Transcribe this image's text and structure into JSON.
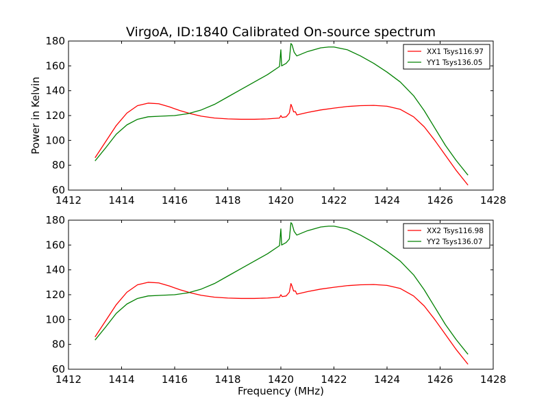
{
  "figure": {
    "title": "VirgoA, ID:1840 Calibrated On-source spectrum",
    "xlabel": "Frequency (MHz)",
    "ylabel": "Power in Kelvin"
  },
  "chart_data": [
    {
      "type": "line",
      "title": "VirgoA, ID:1840 Calibrated On-source spectrum",
      "xlabel": "",
      "ylabel": "Power in Kelvin",
      "xlim": [
        1412,
        1428
      ],
      "ylim": [
        60,
        180
      ],
      "x_ticks": [
        1412,
        1414,
        1416,
        1418,
        1420,
        1422,
        1424,
        1426,
        1428
      ],
      "y_ticks": [
        60,
        80,
        100,
        120,
        140,
        160,
        180
      ],
      "legend_position": "top-right",
      "series": [
        {
          "name": "XX1 Tsys116.97",
          "color": "#ff0000",
          "points": [
            [
              1413.0,
              86
            ],
            [
              1413.4,
              99
            ],
            [
              1413.8,
              112
            ],
            [
              1414.2,
              122
            ],
            [
              1414.6,
              128
            ],
            [
              1415.0,
              130
            ],
            [
              1415.4,
              129.5
            ],
            [
              1415.8,
              127
            ],
            [
              1416.2,
              124
            ],
            [
              1416.6,
              121.5
            ],
            [
              1417.0,
              119.5
            ],
            [
              1417.5,
              118
            ],
            [
              1418.0,
              117.3
            ],
            [
              1418.5,
              117
            ],
            [
              1419.0,
              117
            ],
            [
              1419.5,
              117.3
            ],
            [
              1419.95,
              118
            ],
            [
              1420.0,
              120
            ],
            [
              1420.05,
              118.5
            ],
            [
              1420.2,
              119
            ],
            [
              1420.32,
              122
            ],
            [
              1420.38,
              129
            ],
            [
              1420.42,
              127
            ],
            [
              1420.48,
              123
            ],
            [
              1420.55,
              123
            ],
            [
              1420.6,
              120.5
            ],
            [
              1421.0,
              122.5
            ],
            [
              1421.5,
              124.5
            ],
            [
              1422.0,
              126
            ],
            [
              1422.5,
              127.3
            ],
            [
              1423.0,
              128
            ],
            [
              1423.5,
              128.2
            ],
            [
              1424.0,
              127.5
            ],
            [
              1424.5,
              125
            ],
            [
              1425.0,
              119
            ],
            [
              1425.4,
              111
            ],
            [
              1425.8,
              100
            ],
            [
              1426.2,
              88
            ],
            [
              1426.6,
              76
            ],
            [
              1427.05,
              64
            ]
          ]
        },
        {
          "name": "YY1 Tsys136.05",
          "color": "#008000",
          "points": [
            [
              1413.0,
              83.5
            ],
            [
              1413.4,
              94
            ],
            [
              1413.8,
              105
            ],
            [
              1414.2,
              112.5
            ],
            [
              1414.6,
              117
            ],
            [
              1415.0,
              119
            ],
            [
              1415.5,
              119.5
            ],
            [
              1416.0,
              120
            ],
            [
              1416.5,
              121.5
            ],
            [
              1417.0,
              124.5
            ],
            [
              1417.5,
              129
            ],
            [
              1418.0,
              135
            ],
            [
              1418.5,
              141
            ],
            [
              1419.0,
              147
            ],
            [
              1419.5,
              153
            ],
            [
              1419.95,
              159.5
            ],
            [
              1420.0,
              173
            ],
            [
              1420.03,
              160
            ],
            [
              1420.2,
              162
            ],
            [
              1420.32,
              165
            ],
            [
              1420.38,
              178
            ],
            [
              1420.42,
              177
            ],
            [
              1420.5,
              171
            ],
            [
              1420.6,
              168
            ],
            [
              1421.0,
              171.5
            ],
            [
              1421.5,
              174.5
            ],
            [
              1421.8,
              175.2
            ],
            [
              1422.0,
              175.2
            ],
            [
              1422.5,
              173
            ],
            [
              1423.0,
              168
            ],
            [
              1423.5,
              162
            ],
            [
              1424.0,
              155
            ],
            [
              1424.5,
              147
            ],
            [
              1425.0,
              136
            ],
            [
              1425.4,
              124
            ],
            [
              1425.8,
              110
            ],
            [
              1426.2,
              96
            ],
            [
              1426.6,
              84
            ],
            [
              1427.05,
              72
            ]
          ]
        }
      ]
    },
    {
      "type": "line",
      "title": "",
      "xlabel": "Frequency (MHz)",
      "ylabel": "",
      "xlim": [
        1412,
        1428
      ],
      "ylim": [
        60,
        180
      ],
      "x_ticks": [
        1412,
        1414,
        1416,
        1418,
        1420,
        1422,
        1424,
        1426,
        1428
      ],
      "y_ticks": [
        60,
        80,
        100,
        120,
        140,
        160,
        180
      ],
      "legend_position": "top-right",
      "series": [
        {
          "name": "XX2 Tsys116.98",
          "color": "#ff0000",
          "points": [
            [
              1413.0,
              86
            ],
            [
              1413.4,
              99
            ],
            [
              1413.8,
              112
            ],
            [
              1414.2,
              122
            ],
            [
              1414.6,
              128
            ],
            [
              1415.0,
              130
            ],
            [
              1415.4,
              129.5
            ],
            [
              1415.8,
              127
            ],
            [
              1416.2,
              124
            ],
            [
              1416.6,
              121.5
            ],
            [
              1417.0,
              119.5
            ],
            [
              1417.5,
              118
            ],
            [
              1418.0,
              117.3
            ],
            [
              1418.5,
              117
            ],
            [
              1419.0,
              117
            ],
            [
              1419.5,
              117.3
            ],
            [
              1419.95,
              118
            ],
            [
              1420.0,
              120
            ],
            [
              1420.05,
              118.5
            ],
            [
              1420.2,
              119
            ],
            [
              1420.32,
              122
            ],
            [
              1420.38,
              129
            ],
            [
              1420.42,
              127
            ],
            [
              1420.48,
              123
            ],
            [
              1420.55,
              123
            ],
            [
              1420.6,
              120.5
            ],
            [
              1421.0,
              122.5
            ],
            [
              1421.5,
              124.5
            ],
            [
              1422.0,
              126
            ],
            [
              1422.5,
              127.3
            ],
            [
              1423.0,
              128
            ],
            [
              1423.5,
              128.2
            ],
            [
              1424.0,
              127.5
            ],
            [
              1424.5,
              125
            ],
            [
              1425.0,
              119
            ],
            [
              1425.4,
              111
            ],
            [
              1425.8,
              100
            ],
            [
              1426.2,
              88
            ],
            [
              1426.6,
              76
            ],
            [
              1427.05,
              64
            ]
          ]
        },
        {
          "name": "YY2 Tsys136.07",
          "color": "#008000",
          "points": [
            [
              1413.0,
              83.5
            ],
            [
              1413.4,
              94
            ],
            [
              1413.8,
              105
            ],
            [
              1414.2,
              112.5
            ],
            [
              1414.6,
              117
            ],
            [
              1415.0,
              119
            ],
            [
              1415.5,
              119.5
            ],
            [
              1416.0,
              120
            ],
            [
              1416.5,
              121.5
            ],
            [
              1417.0,
              124.5
            ],
            [
              1417.5,
              129
            ],
            [
              1418.0,
              135
            ],
            [
              1418.5,
              141
            ],
            [
              1419.0,
              147
            ],
            [
              1419.5,
              153
            ],
            [
              1419.95,
              159.5
            ],
            [
              1420.0,
              173
            ],
            [
              1420.03,
              160
            ],
            [
              1420.2,
              162
            ],
            [
              1420.32,
              165
            ],
            [
              1420.38,
              178
            ],
            [
              1420.42,
              177
            ],
            [
              1420.5,
              171
            ],
            [
              1420.6,
              168
            ],
            [
              1421.0,
              171.5
            ],
            [
              1421.5,
              174.5
            ],
            [
              1421.8,
              175.2
            ],
            [
              1422.0,
              175.2
            ],
            [
              1422.5,
              173
            ],
            [
              1423.0,
              168
            ],
            [
              1423.5,
              162
            ],
            [
              1424.0,
              155
            ],
            [
              1424.5,
              147
            ],
            [
              1425.0,
              136
            ],
            [
              1425.4,
              124
            ],
            [
              1425.8,
              110
            ],
            [
              1426.2,
              96
            ],
            [
              1426.6,
              84
            ],
            [
              1427.05,
              72
            ]
          ]
        }
      ]
    }
  ]
}
